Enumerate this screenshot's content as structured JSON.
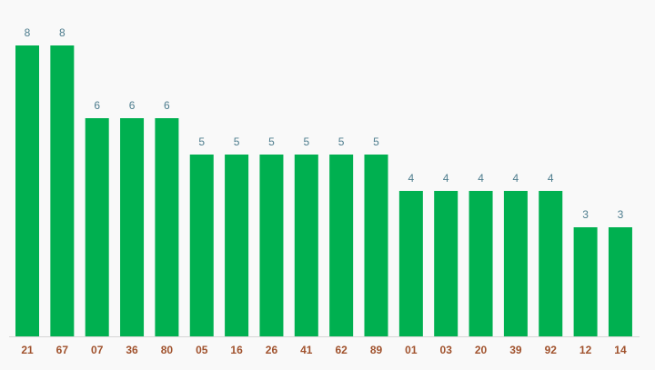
{
  "chart_data": {
    "type": "bar",
    "categories": [
      "21",
      "67",
      "07",
      "36",
      "80",
      "05",
      "16",
      "26",
      "41",
      "62",
      "89",
      "01",
      "03",
      "20",
      "39",
      "92",
      "12",
      "14"
    ],
    "values": [
      8,
      8,
      6,
      6,
      6,
      5,
      5,
      5,
      5,
      5,
      5,
      4,
      4,
      4,
      4,
      4,
      3,
      3
    ],
    "color": "#00b050"
  }
}
